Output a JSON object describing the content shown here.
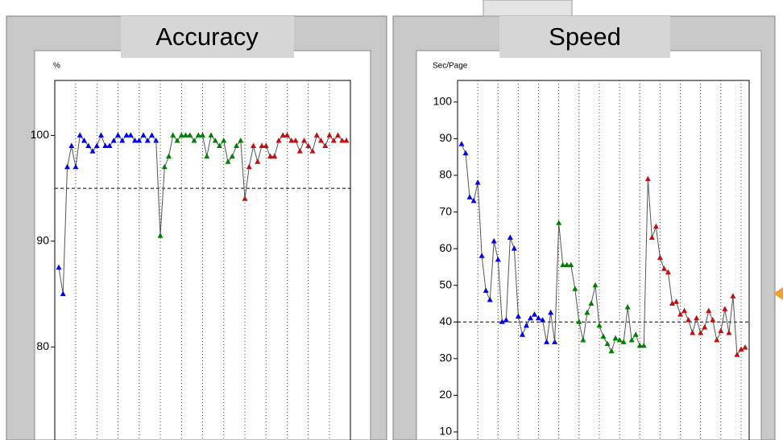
{
  "chart_data": [
    {
      "type": "line",
      "title": "Accuracy",
      "y_label": "%",
      "categories": [
        null,
        null,
        null,
        null,
        null,
        null,
        null,
        null,
        null,
        null,
        null,
        null,
        null,
        null,
        null,
        null,
        null,
        null,
        null,
        null,
        null,
        null,
        null,
        null,
        null,
        null,
        null,
        null,
        null,
        null,
        null,
        null,
        null,
        null,
        null,
        null,
        null,
        null,
        null,
        null,
        null,
        null,
        null,
        null,
        null,
        null,
        null,
        null,
        null,
        null,
        null,
        null,
        null,
        null,
        null,
        null,
        null,
        null,
        null,
        null,
        null,
        null,
        null,
        null,
        null,
        null,
        null,
        null,
        null
      ],
      "series": [
        {
          "color": "#0000ee",
          "values": [
            87.5,
            85,
            97,
            99,
            97,
            100,
            99.5,
            99,
            98.5,
            99,
            100,
            99,
            99,
            99.5,
            100,
            99.5,
            100,
            100,
            99.5,
            99.5,
            100,
            99.5,
            100,
            99.5,
            null,
            null,
            null,
            null,
            null,
            null,
            null,
            null,
            null,
            null,
            null,
            null,
            null,
            null,
            null,
            null,
            null,
            null,
            null,
            null,
            null,
            null,
            null,
            null,
            null,
            null,
            null,
            null,
            null,
            null,
            null,
            null,
            null,
            null,
            null,
            null,
            null,
            null,
            null,
            null,
            null,
            null,
            null,
            null,
            null
          ]
        },
        {
          "color": "#008000",
          "values": [
            null,
            null,
            null,
            null,
            null,
            null,
            null,
            null,
            null,
            null,
            null,
            null,
            null,
            null,
            null,
            null,
            null,
            null,
            null,
            null,
            null,
            null,
            null,
            null,
            90.5,
            97,
            98,
            100,
            99.5,
            100,
            100,
            100,
            99.5,
            100,
            100,
            98,
            100,
            99.5,
            99,
            99.5,
            97.5,
            98,
            99,
            99.5,
            null,
            null,
            null,
            null,
            null,
            null,
            null,
            null,
            null,
            null,
            null,
            null,
            null,
            null,
            null,
            null,
            null,
            null,
            null,
            null,
            null,
            null,
            null,
            null,
            null
          ]
        },
        {
          "color": "#c01010",
          "values": [
            null,
            null,
            null,
            null,
            null,
            null,
            null,
            null,
            null,
            null,
            null,
            null,
            null,
            null,
            null,
            null,
            null,
            null,
            null,
            null,
            null,
            null,
            null,
            null,
            null,
            null,
            null,
            null,
            null,
            null,
            null,
            null,
            null,
            null,
            null,
            null,
            null,
            null,
            null,
            null,
            null,
            null,
            null,
            null,
            94,
            97,
            99,
            97.5,
            99,
            99,
            98,
            98,
            99.5,
            100,
            100,
            99.5,
            99.5,
            98.5,
            99.5,
            99,
            98.5,
            100,
            99.5,
            99,
            100,
            99.5,
            100,
            99.5,
            99.5
          ]
        }
      ],
      "reference_line": 95,
      "ylim": [
        71.2,
        105.2
      ],
      "yticks": [
        80,
        90,
        100
      ]
    },
    {
      "type": "line",
      "title": "Speed",
      "y_label": "Sec/Page",
      "categories": [
        null,
        null,
        null,
        null,
        null,
        null,
        null,
        null,
        null,
        null,
        null,
        null,
        null,
        null,
        null,
        null,
        null,
        null,
        null,
        null,
        null,
        null,
        null,
        null,
        null,
        null,
        null,
        null,
        null,
        null,
        null,
        null,
        null,
        null,
        null,
        null,
        null,
        null,
        null,
        null,
        null,
        null,
        null,
        null,
        null,
        null,
        null,
        null,
        null,
        null,
        null,
        null,
        null,
        null,
        null,
        null,
        null,
        null,
        null,
        null,
        null,
        null,
        null,
        null,
        null,
        null,
        null,
        null,
        null,
        null,
        null
      ],
      "series": [
        {
          "color": "#0000ee",
          "values": [
            88.5,
            86,
            74,
            73,
            78,
            58,
            48.5,
            46,
            62,
            57,
            40,
            40.5,
            63,
            60,
            41.5,
            36.5,
            39,
            41,
            42,
            41,
            40.5,
            34.5,
            42.5,
            34.5,
            null,
            null,
            null,
            null,
            null,
            null,
            null,
            null,
            null,
            null,
            null,
            null,
            null,
            null,
            null,
            null,
            null,
            null,
            null,
            null,
            null,
            null,
            null,
            null,
            null,
            null,
            null,
            null,
            null,
            null,
            null,
            null,
            null,
            null,
            null,
            null,
            null,
            null,
            null,
            null,
            null,
            null,
            null,
            null,
            null,
            null,
            null
          ]
        },
        {
          "color": "#008000",
          "values": [
            null,
            null,
            null,
            null,
            null,
            null,
            null,
            null,
            null,
            null,
            null,
            null,
            null,
            null,
            null,
            null,
            null,
            null,
            null,
            null,
            null,
            null,
            null,
            null,
            67,
            55.5,
            55.5,
            55.5,
            49,
            40,
            35,
            42.5,
            45,
            50,
            39,
            36,
            34,
            32,
            35.5,
            35,
            34.5,
            44,
            35,
            36.5,
            33.5,
            33.5,
            null,
            null,
            null,
            null,
            null,
            null,
            null,
            null,
            null,
            null,
            null,
            null,
            null,
            null,
            null,
            null,
            null,
            null,
            null,
            null,
            null,
            null,
            null,
            null,
            null
          ]
        },
        {
          "color": "#c01010",
          "values": [
            null,
            null,
            null,
            null,
            null,
            null,
            null,
            null,
            null,
            null,
            null,
            null,
            null,
            null,
            null,
            null,
            null,
            null,
            null,
            null,
            null,
            null,
            null,
            null,
            null,
            null,
            null,
            null,
            null,
            null,
            null,
            null,
            null,
            null,
            null,
            null,
            null,
            null,
            null,
            null,
            null,
            null,
            null,
            null,
            null,
            null,
            79,
            63,
            66,
            57.5,
            54.5,
            53.5,
            45,
            45.5,
            42,
            43,
            40.5,
            37,
            41,
            37,
            38.5,
            43,
            40.5,
            35,
            37.5,
            43.5,
            37,
            47,
            31,
            32.5,
            33
          ]
        }
      ],
      "reference_line": 40,
      "ylim": [
        7.8,
        105.9
      ],
      "yticks": [
        10,
        20,
        30,
        40,
        50,
        60,
        70,
        80,
        90,
        100
      ]
    }
  ]
}
